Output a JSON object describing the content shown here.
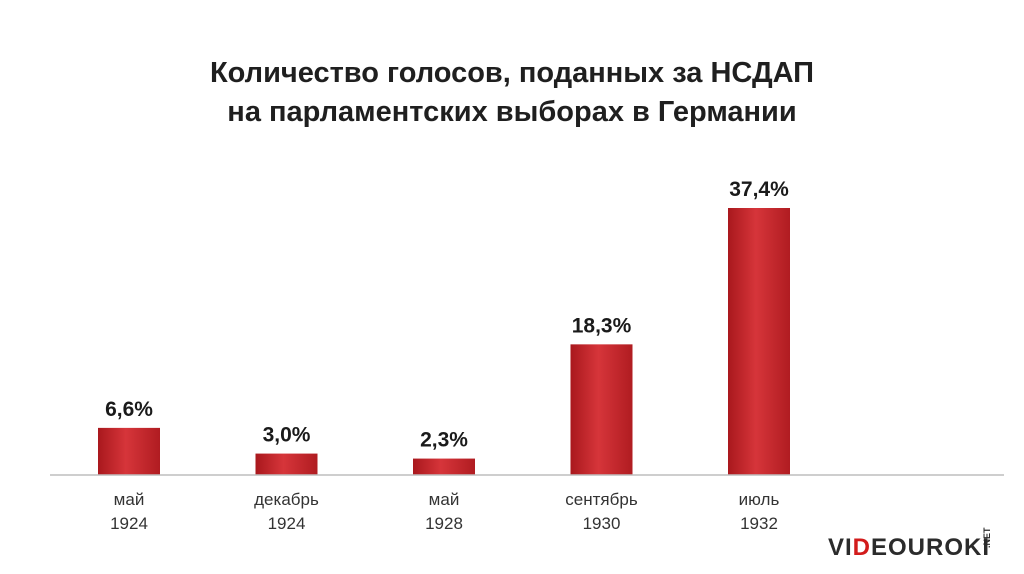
{
  "title": {
    "line1": "Количество голосов, поданных за НСДАП",
    "line2": "на парламентских выборах в Германии"
  },
  "chart_data": {
    "type": "bar",
    "title": "Количество голосов, поданных за НСДАП на парламентских выборах в Германии",
    "categories": [
      {
        "line1": "май",
        "line2": "1924"
      },
      {
        "line1": "декабрь",
        "line2": "1924"
      },
      {
        "line1": "май",
        "line2": "1928"
      },
      {
        "line1": "сентябрь",
        "line2": "1930"
      },
      {
        "line1": "июль",
        "line2": "1932"
      }
    ],
    "values": [
      6.6,
      3.0,
      2.3,
      18.3,
      37.4
    ],
    "value_labels": [
      "6,6%",
      "3,0%",
      "2,3%",
      "18,3%",
      "37,4%"
    ],
    "unit": "%",
    "ylim": [
      0,
      40
    ],
    "grid": false,
    "legend": "none",
    "bar_color": "#c0282d"
  },
  "logo": {
    "pre": "VI",
    "accent": "D",
    "post": "EOUROKI",
    "suffix": ".NET"
  }
}
